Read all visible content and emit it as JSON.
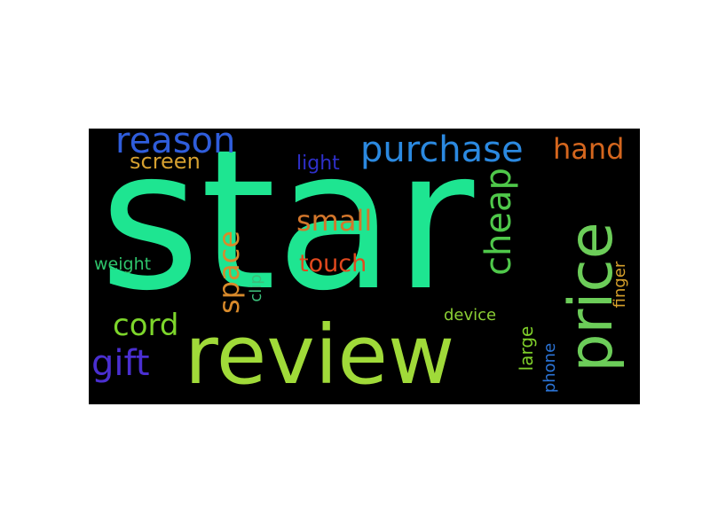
{
  "words": {
    "star": {
      "text": "star",
      "color": "#1ee591"
    },
    "review": {
      "text": "review",
      "color": "#a0da39"
    },
    "price": {
      "text": "price",
      "color": "#6ccd59"
    },
    "purchase": {
      "text": "purchase",
      "color": "#2b89e0"
    },
    "reason": {
      "text": "reason",
      "color": "#2f5ddb"
    },
    "hand": {
      "text": "hand",
      "color": "#d4661e"
    },
    "screen": {
      "text": "screen",
      "color": "#d5a030"
    },
    "cheap": {
      "text": "cheap",
      "color": "#4fc84a"
    },
    "small": {
      "text": "small",
      "color": "#d3762b"
    },
    "light": {
      "text": "light",
      "color": "#2e2fc9"
    },
    "space": {
      "text": "space",
      "color": "#d88a2b"
    },
    "touch": {
      "text": "touch",
      "color": "#e2491e"
    },
    "weight": {
      "text": "weight",
      "color": "#2ec46b"
    },
    "clip": {
      "text": "clip",
      "color": "#3bbf7a"
    },
    "cord": {
      "text": "cord",
      "color": "#7dd62b"
    },
    "gift": {
      "text": "gift",
      "color": "#4a2fd0"
    },
    "device": {
      "text": "device",
      "color": "#8bcf35"
    },
    "large": {
      "text": "large",
      "color": "#7fcf2a"
    },
    "phone": {
      "text": "phone",
      "color": "#2b74d6"
    },
    "finger": {
      "text": "finger",
      "color": "#d6a02b"
    }
  }
}
